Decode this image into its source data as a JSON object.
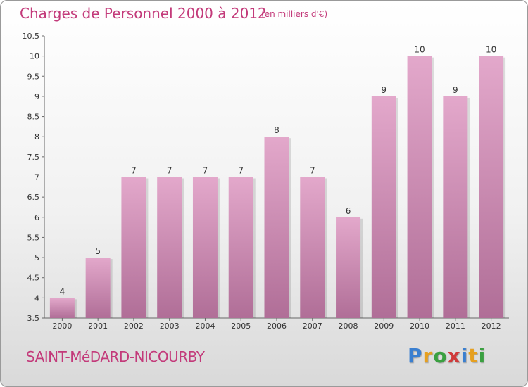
{
  "header": {
    "title": "Charges de Personnel 2000 à 2012",
    "subtitle": "(en milliers d'€)"
  },
  "footer": {
    "commune": "SAINT-MéDARD-NICOURBY",
    "logo": "Proxiti"
  },
  "colors": {
    "bar_top": "#e3a8cb",
    "bar_bottom": "#b06e97",
    "accent": "#c33a7a"
  },
  "chart_data": {
    "type": "bar",
    "categories": [
      "2000",
      "2001",
      "2002",
      "2003",
      "2004",
      "2005",
      "2006",
      "2007",
      "2008",
      "2009",
      "2010",
      "2011",
      "2012"
    ],
    "values": [
      4,
      5,
      7,
      7,
      7,
      7,
      8,
      7,
      6,
      9,
      10,
      9,
      10
    ],
    "data_labels": [
      "4",
      "5",
      "7",
      "7",
      "7",
      "7",
      "8",
      "7",
      "6",
      "9",
      "10",
      "9",
      "10"
    ],
    "ylim": [
      3.5,
      10.5
    ],
    "yticks": [
      3.5,
      4,
      4.5,
      5,
      5.5,
      6,
      6.5,
      7,
      7.5,
      8,
      8.5,
      9,
      9.5,
      10,
      10.5
    ],
    "ytick_labels": [
      "3.5",
      "4",
      "4.5",
      "5",
      "5.5",
      "6",
      "6.5",
      "7",
      "7.5",
      "8",
      "8.5",
      "9",
      "9.5",
      "10",
      "10.5"
    ],
    "grid": false
  }
}
